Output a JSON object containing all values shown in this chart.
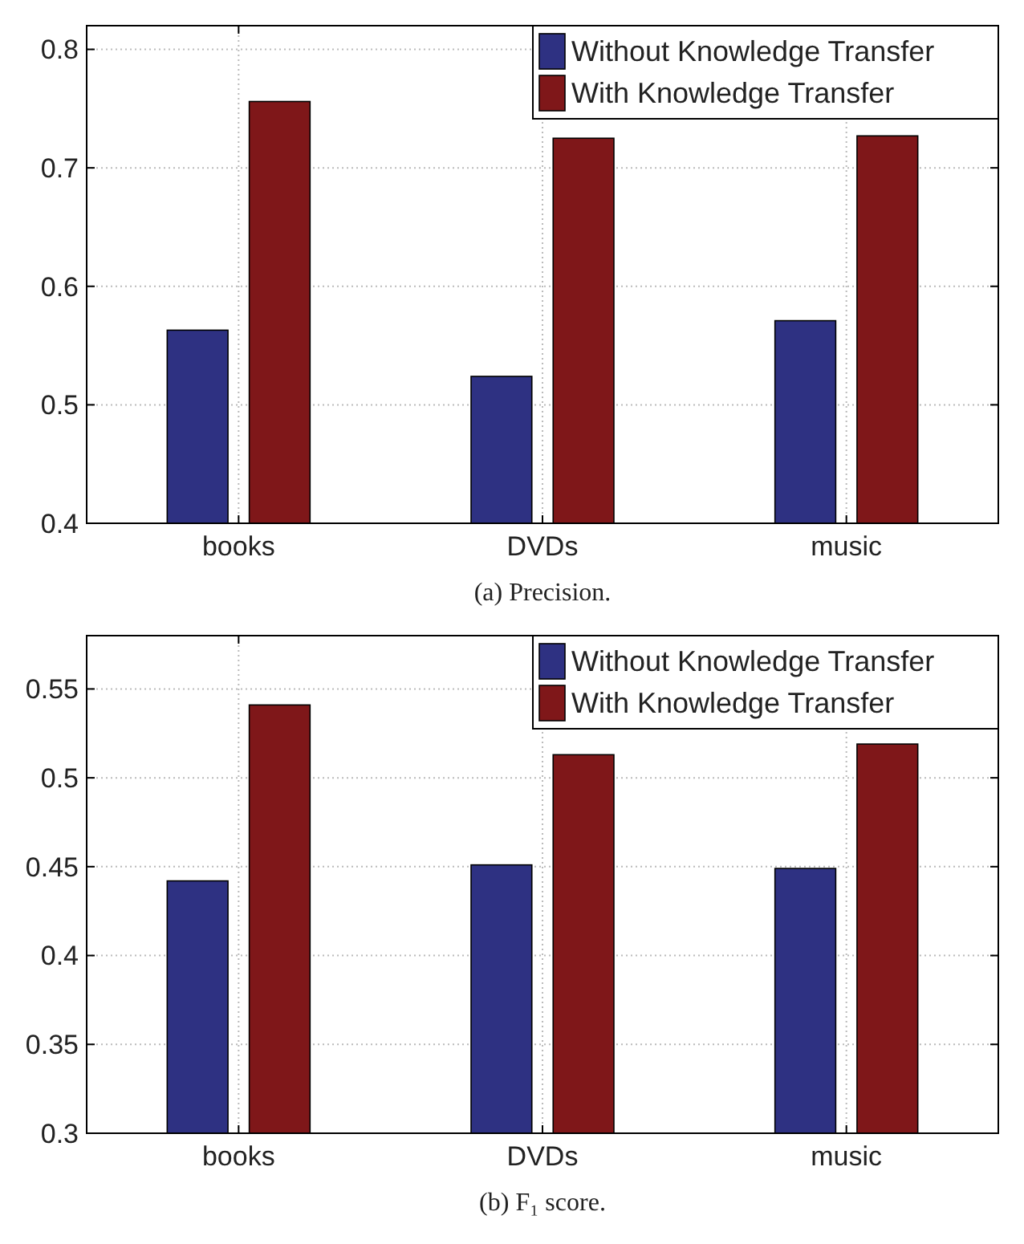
{
  "chart_data": [
    {
      "type": "bar",
      "categories": [
        "books",
        "DVDs",
        "music"
      ],
      "series": [
        {
          "name": "Without Knowledge Transfer",
          "color": "#2e3182",
          "values": [
            0.563,
            0.524,
            0.571
          ]
        },
        {
          "name": "With Knowledge Transfer",
          "color": "#7f1719",
          "values": [
            0.756,
            0.725,
            0.727
          ]
        }
      ],
      "ylim": [
        0.4,
        0.82
      ],
      "yticks": [
        0.4,
        0.5,
        0.6,
        0.7,
        0.8
      ],
      "grid": true,
      "legend": "top right",
      "annotations": [
        "(a) Precision."
      ]
    },
    {
      "type": "bar",
      "categories": [
        "books",
        "DVDs",
        "music"
      ],
      "series": [
        {
          "name": "Without Knowledge Transfer",
          "color": "#2e3182",
          "values": [
            0.442,
            0.451,
            0.449
          ]
        },
        {
          "name": "With Knowledge Transfer",
          "color": "#7f1719",
          "values": [
            0.541,
            0.513,
            0.519
          ]
        }
      ],
      "ylim": [
        0.3,
        0.58
      ],
      "yticks": [
        0.3,
        0.35,
        0.4,
        0.45,
        0.5,
        0.55
      ],
      "grid": true,
      "legend": "top right",
      "annotations": [
        "(b) F₁ score."
      ]
    }
  ]
}
